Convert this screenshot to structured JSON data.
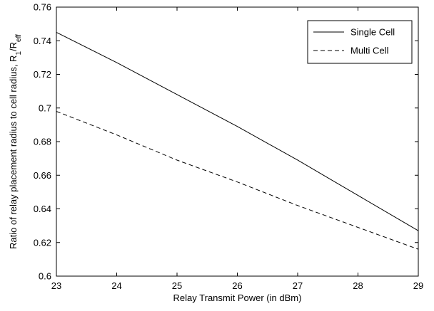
{
  "chart_data": {
    "type": "line",
    "title": "",
    "xlabel": "Relay Transmit Power (in dBm)",
    "ylabel": {
      "main": "Ratio of relay placement radius to cell radius, R",
      "sub1": "1",
      "mid": "/R",
      "sub2": "eff"
    },
    "xlim": [
      23,
      29
    ],
    "ylim": [
      0.6,
      0.76
    ],
    "xticks": [
      23,
      24,
      25,
      26,
      27,
      28,
      29
    ],
    "xtick_labels": [
      "23",
      "24",
      "25",
      "26",
      "27",
      "28",
      "29"
    ],
    "yticks": [
      0.6,
      0.62,
      0.64,
      0.66,
      0.68,
      0.7,
      0.72,
      0.74,
      0.76
    ],
    "ytick_labels": [
      "0.6",
      "0.62",
      "0.64",
      "0.66",
      "0.68",
      "0.7",
      "0.72",
      "0.74",
      "0.76"
    ],
    "grid": false,
    "legend_position": "top-right",
    "series": [
      {
        "name": "Single Cell",
        "style": "solid",
        "color": "#000000",
        "x": [
          23,
          24,
          25,
          26,
          27,
          28,
          29
        ],
        "y": [
          0.745,
          0.727,
          0.708,
          0.689,
          0.669,
          0.648,
          0.627
        ]
      },
      {
        "name": "Multi Cell",
        "style": "dashed",
        "color": "#000000",
        "x": [
          23,
          24,
          25,
          26,
          27,
          28,
          29
        ],
        "y": [
          0.698,
          0.684,
          0.669,
          0.656,
          0.642,
          0.629,
          0.616
        ]
      }
    ]
  }
}
